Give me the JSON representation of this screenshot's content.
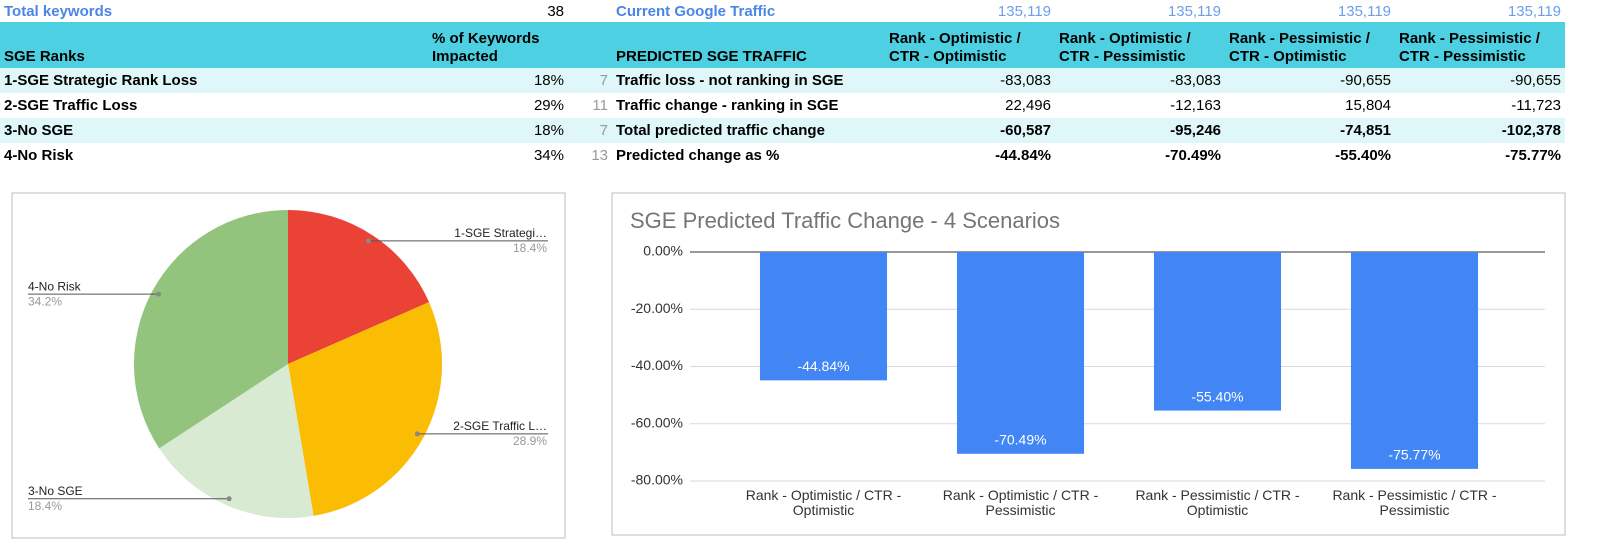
{
  "table": {
    "top": {
      "label": "Total keywords",
      "count": "38",
      "traffic_label": "Current Google Traffic",
      "traffic": [
        "135,119",
        "135,119",
        "135,119",
        "135,119"
      ]
    },
    "left_header": [
      "SGE Ranks",
      "% of Keywords Impacted"
    ],
    "right_header": [
      "PREDICTED SGE TRAFFIC",
      "Rank - Optimistic / CTR - Optimistic",
      "Rank - Optimistic / CTR - Pessimistic",
      "Rank - Pessimistic / CTR - Optimistic",
      "Rank - Pessimistic / CTR - Pessimistic"
    ],
    "left_rows": [
      [
        "1-SGE Strategic Rank Loss",
        "18%",
        "7"
      ],
      [
        "2-SGE Traffic Loss",
        "29%",
        "11"
      ],
      [
        "3-No SGE",
        "18%",
        "7"
      ],
      [
        "4-No Risk",
        "34%",
        "13"
      ]
    ],
    "right_rows": [
      [
        "Traffic loss - not ranking in SGE",
        "-83,083",
        "-83,083",
        "-90,655",
        "-90,655"
      ],
      [
        "Traffic change - ranking in SGE",
        "22,496",
        "-12,163",
        "15,804",
        "-11,723"
      ],
      [
        "Total predicted traffic change",
        "-60,587",
        "-95,246",
        "-74,851",
        "-102,378"
      ],
      [
        "Predicted change as %",
        "-44.84%",
        "-70.49%",
        "-55.40%",
        "-75.77%"
      ]
    ]
  },
  "chart_data": [
    {
      "type": "pie",
      "categories": [
        "1-SGE Strategi…",
        "2-SGE Traffic L…",
        "3-No SGE",
        "4-No Risk"
      ],
      "values": [
        18.4,
        28.9,
        18.4,
        34.2
      ],
      "value_labels": [
        "18.4%",
        "28.9%",
        "18.4%",
        "34.2%"
      ],
      "colors": [
        "#ea4335",
        "#fbbc04",
        "#d9ead3",
        "#93c47d"
      ]
    },
    {
      "type": "bar",
      "title": "SGE Predicted Traffic Change - 4 Scenarios",
      "categories": [
        "Rank - Optimistic / CTR - Optimistic",
        "Rank - Optimistic / CTR - Pessimistic",
        "Rank - Pessimistic / CTR - Optimistic",
        "Rank - Pessimistic / CTR - Pessimistic"
      ],
      "values": [
        -44.84,
        -70.49,
        -55.4,
        -75.77
      ],
      "value_labels": [
        "-44.84%",
        "-70.49%",
        "-55.40%",
        "-75.77%"
      ],
      "color": "#4285f4",
      "ylim": [
        -80,
        0
      ],
      "yticks": [
        {
          "value": 0,
          "label": "0.00%"
        },
        {
          "value": -20,
          "label": "-20.00%"
        },
        {
          "value": -40,
          "label": "-40.00%"
        },
        {
          "value": -60,
          "label": "-60.00%"
        },
        {
          "value": -80,
          "label": "-80.00%"
        }
      ],
      "grid": true
    }
  ]
}
